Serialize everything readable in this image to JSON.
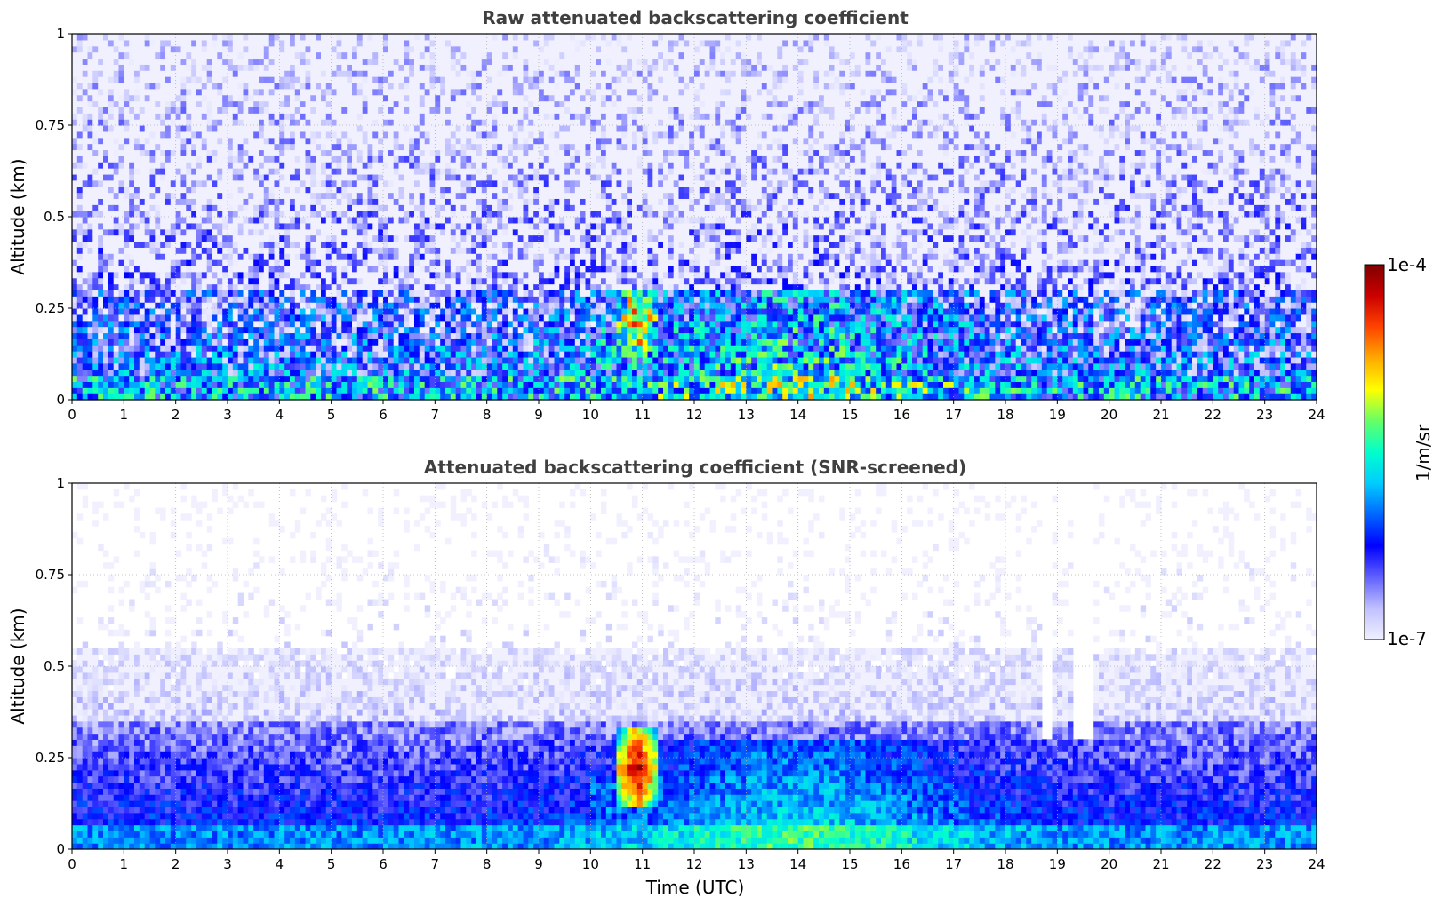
{
  "chart_data": [
    {
      "type": "heatmap",
      "title": "Raw attenuated backscattering coefficient",
      "xlabel": "",
      "ylabel": "Altitude (km)",
      "xlim": [
        0,
        24
      ],
      "ylim": [
        0,
        1
      ],
      "x_ticks": [
        "0",
        "1",
        "2",
        "3",
        "4",
        "5",
        "6",
        "7",
        "8",
        "9",
        "10",
        "11",
        "12",
        "13",
        "14",
        "15",
        "16",
        "17",
        "18",
        "19",
        "20",
        "21",
        "22",
        "23",
        "24"
      ],
      "y_ticks": [
        {
          "value": 0,
          "label": "0"
        },
        {
          "value": 0.25,
          "label": "0.25"
        },
        {
          "value": 0.5,
          "label": "0.5"
        },
        {
          "value": 0.75,
          "label": "0.75"
        },
        {
          "value": 1,
          "label": "1"
        }
      ],
      "grid": true,
      "features": {
        "surface_layer_top_km": 0.07,
        "boundary_layer_top_km": 0.3,
        "plume": {
          "time_utc": [
            10.5,
            11.3
          ],
          "top_km": 0.3,
          "peak_log10": -4.5
        },
        "raw_noise": true
      }
    },
    {
      "type": "heatmap",
      "title": "Attenuated backscattering coefficient (SNR-screened)",
      "xlabel": "Time (UTC)",
      "ylabel": "Altitude (km)",
      "xlim": [
        0,
        24
      ],
      "ylim": [
        0,
        1
      ],
      "x_ticks": [
        "0",
        "1",
        "2",
        "3",
        "4",
        "5",
        "6",
        "7",
        "8",
        "9",
        "10",
        "11",
        "12",
        "13",
        "14",
        "15",
        "16",
        "17",
        "18",
        "19",
        "20",
        "21",
        "22",
        "23",
        "24"
      ],
      "y_ticks": [
        {
          "value": 0,
          "label": "0"
        },
        {
          "value": 0.25,
          "label": "0.25"
        },
        {
          "value": 0.5,
          "label": "0.5"
        },
        {
          "value": 0.75,
          "label": "0.75"
        },
        {
          "value": 1,
          "label": "1"
        }
      ],
      "grid": true,
      "features": {
        "surface_layer_top_km": 0.07,
        "boundary_layer_top_km": 0.35,
        "plume": {
          "time_utc": [
            10.5,
            11.3
          ],
          "top_km": 0.33,
          "peak_log10": -4.0
        },
        "screened_gaps_utc": [
          [
            18.7,
            18.9
          ],
          [
            19.3,
            19.7
          ]
        ],
        "raw_noise": false
      }
    }
  ],
  "colorbar": {
    "label": "1/m/sr",
    "min_label": "1e-7",
    "max_label": "1e-4",
    "log10_range": [
      -7,
      -4
    ],
    "colormap": [
      "#f0f0ff",
      "#c0c0ff",
      "#6060ff",
      "#0000ff",
      "#0066ff",
      "#00ccff",
      "#00ffcc",
      "#66ff66",
      "#ffff00",
      "#ffaa00",
      "#ff4400",
      "#cc0000",
      "#800000"
    ]
  }
}
